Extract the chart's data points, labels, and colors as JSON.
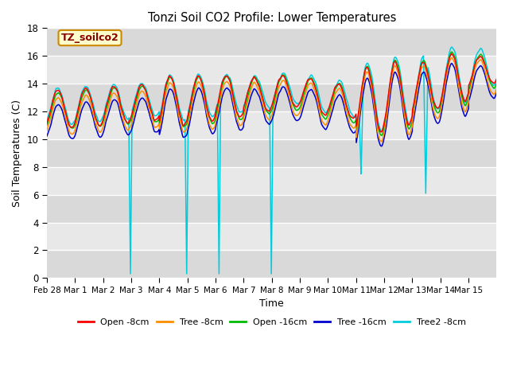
{
  "title": "Tonzi Soil CO2 Profile: Lower Temperatures",
  "xlabel": "Time",
  "ylabel": "Soil Temperatures (C)",
  "ylim": [
    0,
    18
  ],
  "yticks": [
    0,
    2,
    4,
    6,
    8,
    10,
    12,
    14,
    16,
    18
  ],
  "plot_bg_color": "#e8e8e8",
  "fig_bg_color": "#ffffff",
  "legend_label": "TZ_soilco2",
  "series_colors": {
    "Open -8cm": "#ff0000",
    "Tree -8cm": "#ff8c00",
    "Open -16cm": "#00bb00",
    "Tree -16cm": "#0000cc",
    "Tree2 -8cm": "#00ccdd"
  },
  "xtick_positions": [
    0,
    1,
    2,
    3,
    4,
    5,
    6,
    7,
    8,
    9,
    10,
    11,
    12,
    13,
    14,
    15
  ],
  "xtick_labels": [
    "Feb 28",
    "Mar 1",
    "Mar 2",
    "Mar 3",
    "Mar 4",
    "Mar 5",
    "Mar 6",
    "Mar 7",
    "Mar 8",
    "Mar 9",
    "Mar 10",
    "Mar 11",
    "Mar 12",
    "Mar 13",
    "Mar 14",
    "Mar 15"
  ]
}
